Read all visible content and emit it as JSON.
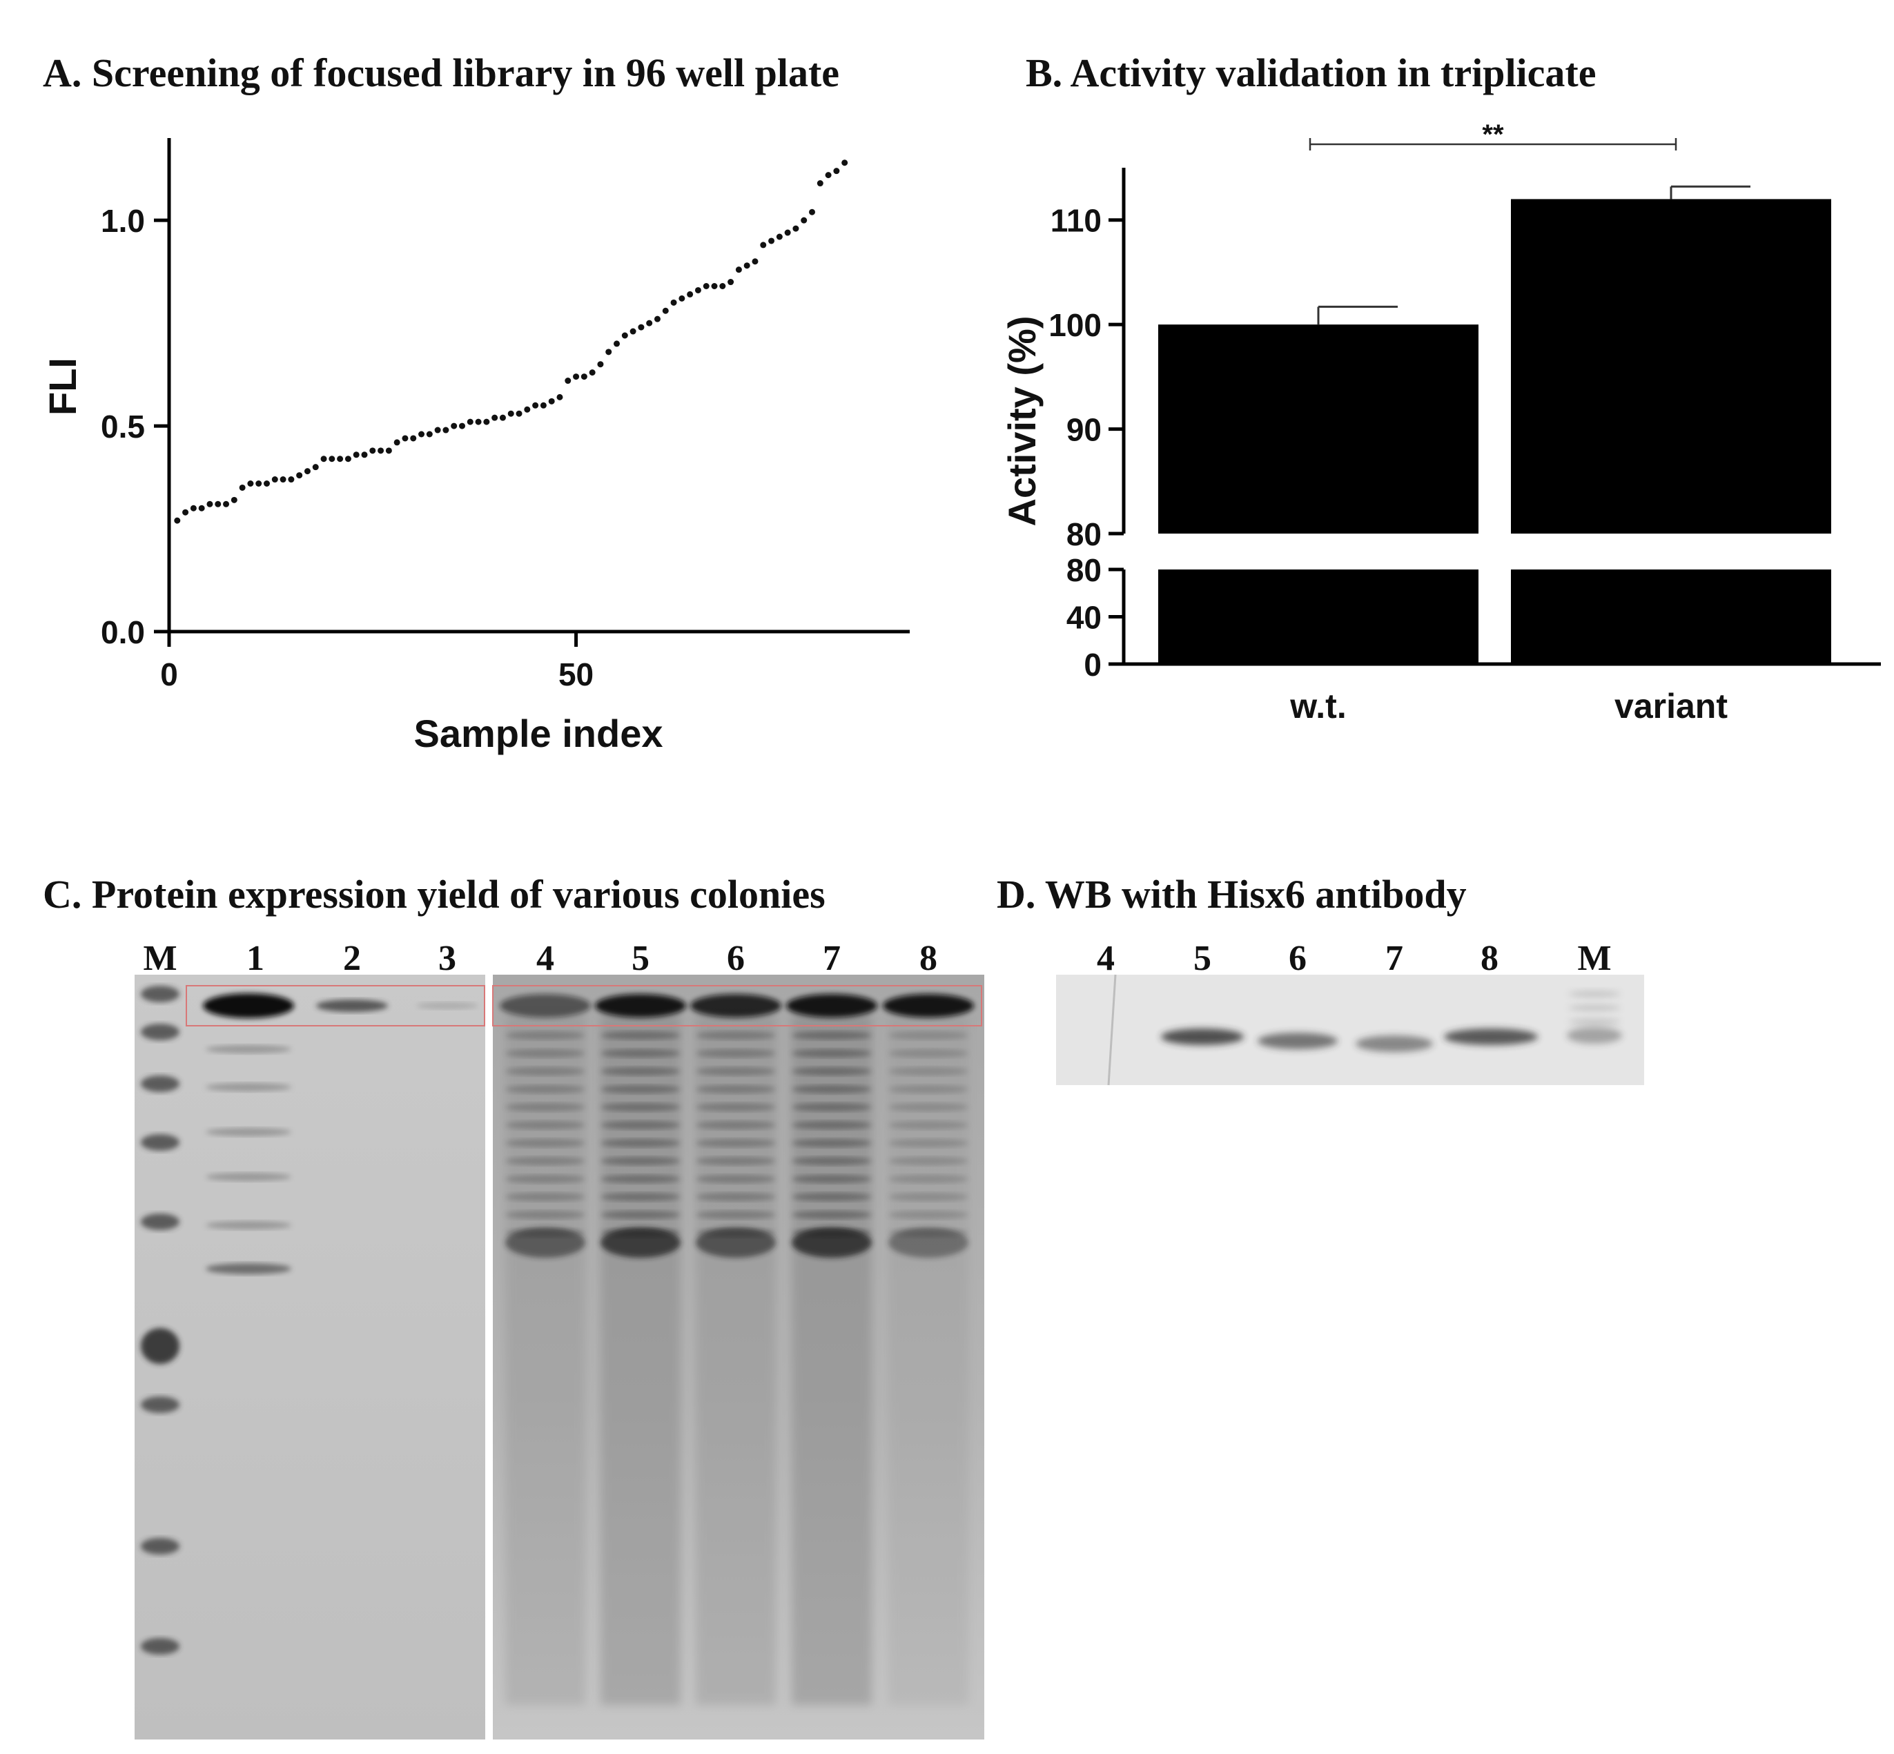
{
  "panels": {
    "a": {
      "title": "A. Screening of focused library in 96 well plate"
    },
    "b": {
      "title": "B. Activity validation in triplicate"
    },
    "c": {
      "title": "C. Protein expression yield of various colonies"
    },
    "d": {
      "title": "D. WB with Hisx6 antibody"
    }
  },
  "chart_data": [
    {
      "type": "scatter",
      "panel": "A",
      "title": "",
      "xlabel": "Sample index",
      "ylabel": "FLI",
      "xlim": [
        0,
        91
      ],
      "ylim": [
        0,
        1.2
      ],
      "xticks": [
        0,
        50
      ],
      "xtick_labels": [
        "0",
        "50"
      ],
      "yticks": [
        0.0,
        0.5,
        1.0
      ],
      "ytick_labels": [
        "0.0",
        "0.5",
        "1.0"
      ],
      "grid": false,
      "legend": "none",
      "marker_color": "#111111",
      "y": [
        0.27,
        0.29,
        0.3,
        0.3,
        0.31,
        0.31,
        0.31,
        0.32,
        0.35,
        0.36,
        0.36,
        0.36,
        0.37,
        0.37,
        0.37,
        0.38,
        0.39,
        0.4,
        0.42,
        0.42,
        0.42,
        0.42,
        0.43,
        0.43,
        0.44,
        0.44,
        0.44,
        0.46,
        0.47,
        0.47,
        0.48,
        0.48,
        0.49,
        0.49,
        0.5,
        0.5,
        0.51,
        0.51,
        0.51,
        0.52,
        0.52,
        0.53,
        0.53,
        0.54,
        0.55,
        0.55,
        0.56,
        0.57,
        0.61,
        0.62,
        0.62,
        0.63,
        0.65,
        0.68,
        0.7,
        0.72,
        0.73,
        0.74,
        0.75,
        0.76,
        0.78,
        0.8,
        0.81,
        0.82,
        0.83,
        0.84,
        0.84,
        0.84,
        0.85,
        0.88,
        0.89,
        0.9,
        0.94,
        0.95,
        0.96,
        0.97,
        0.98,
        1.0,
        1.02,
        1.09,
        1.11,
        1.12,
        1.14
      ]
    },
    {
      "type": "bar",
      "panel": "B",
      "title": "",
      "xlabel": "",
      "ylabel": "Activity (%)",
      "categories": [
        "w.t.",
        "variant"
      ],
      "values": [
        100,
        112
      ],
      "errors": [
        1.7,
        1.2
      ],
      "axis_break": true,
      "upper_segment": {
        "ylim": [
          80,
          115
        ],
        "yticks": [
          "80",
          "90",
          "100",
          "110"
        ]
      },
      "lower_segment": {
        "ylim": [
          0,
          80
        ],
        "yticks": [
          "0",
          "40",
          "80"
        ]
      },
      "bar_color": "#000000",
      "grid": false,
      "legend": "none",
      "annotations": [
        {
          "text": "**",
          "between": [
            "w.t.",
            "variant"
          ]
        }
      ]
    }
  ],
  "gels": {
    "sds_page": {
      "lanes": [
        "M",
        "1",
        "2",
        "3",
        "4",
        "5",
        "6",
        "7",
        "8"
      ]
    },
    "western_blot": {
      "lanes": [
        "4",
        "5",
        "6",
        "7",
        "8",
        "M"
      ]
    }
  }
}
